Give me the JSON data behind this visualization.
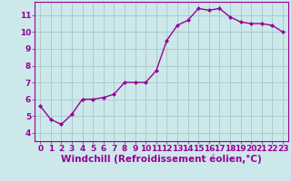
{
  "x": [
    0,
    1,
    2,
    3,
    4,
    5,
    6,
    7,
    8,
    9,
    10,
    11,
    12,
    13,
    14,
    15,
    16,
    17,
    18,
    19,
    20,
    21,
    22,
    23
  ],
  "y": [
    5.6,
    4.8,
    4.5,
    5.1,
    6.0,
    6.0,
    6.1,
    6.3,
    7.0,
    7.0,
    7.0,
    7.7,
    9.5,
    10.4,
    10.7,
    11.4,
    11.3,
    11.4,
    10.9,
    10.6,
    10.5,
    10.5,
    10.4,
    10.0
  ],
  "line_color": "#990099",
  "marker": "D",
  "marker_size": 2.0,
  "bg_color": "#cce8ea",
  "grid_color": "#aacccc",
  "xlabel": "Windchill (Refroidissement éolien,°C)",
  "xlim": [
    -0.5,
    23.5
  ],
  "ylim": [
    3.5,
    11.8
  ],
  "yticks": [
    4,
    5,
    6,
    7,
    8,
    9,
    10,
    11
  ],
  "xticks": [
    0,
    1,
    2,
    3,
    4,
    5,
    6,
    7,
    8,
    9,
    10,
    11,
    12,
    13,
    14,
    15,
    16,
    17,
    18,
    19,
    20,
    21,
    22,
    23
  ],
  "tick_color": "#990099",
  "tick_label_color": "#990099",
  "xlabel_color": "#990099",
  "xlabel_fontsize": 7.5,
  "tick_fontsize": 6.5,
  "linewidth": 1.0,
  "spine_color": "#990099"
}
